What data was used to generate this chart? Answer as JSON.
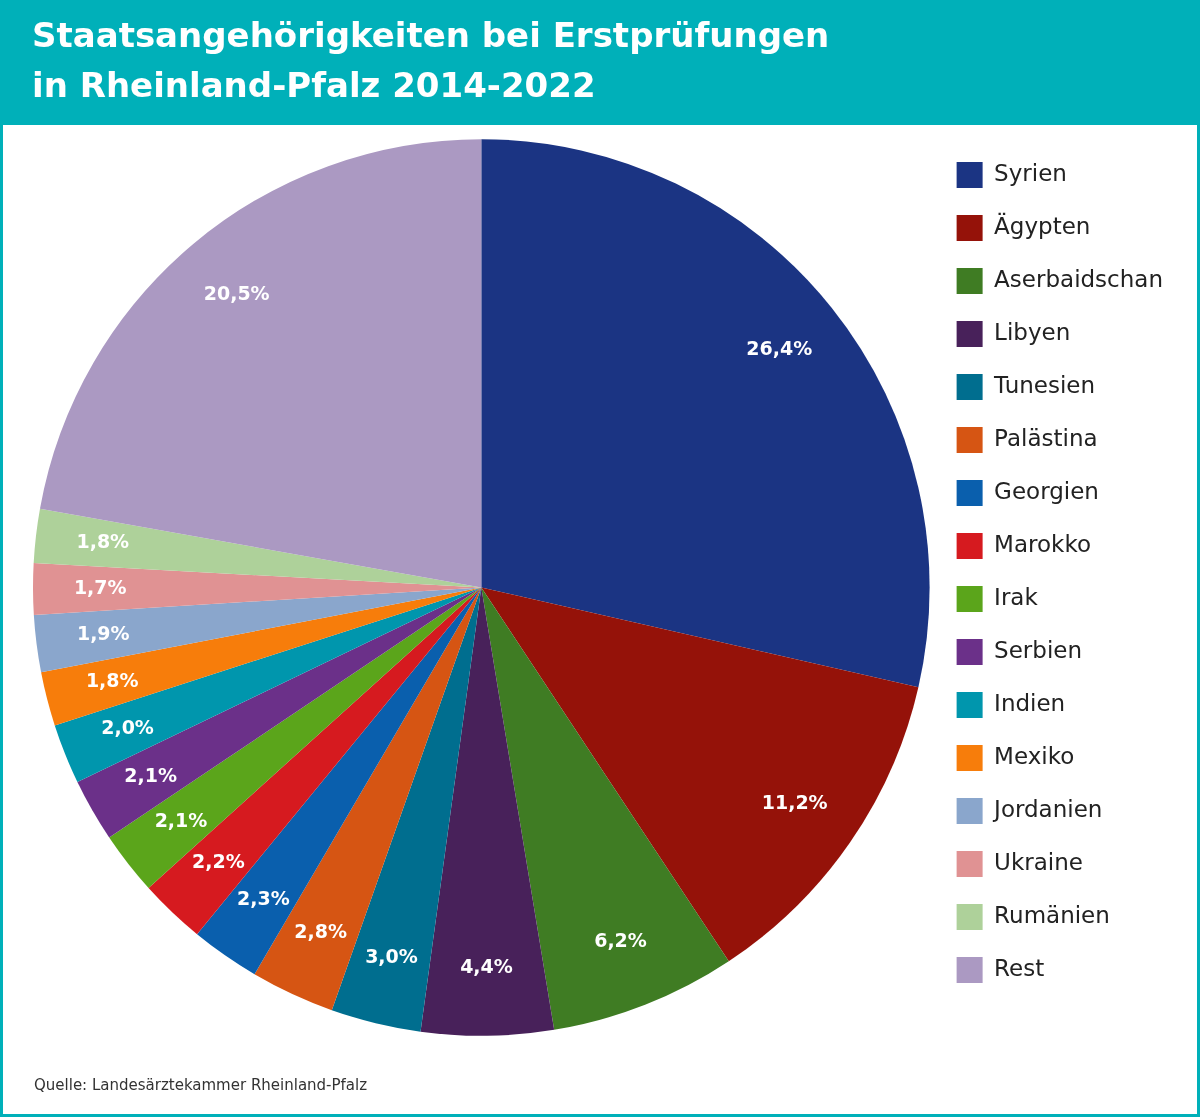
{
  "chart_data": {
    "type": "pie",
    "title": "Staatsangehörigkeiten bei Erstprüfungen in Rheinland-Pfalz 2014-2022",
    "categories": [
      "Syrien",
      "Ägypten",
      "Aserbaidschan",
      "Libyen",
      "Tunesien",
      "Palästina",
      "Georgien",
      "Marokko",
      "Irak",
      "Serbien",
      "Indien",
      "Mexiko",
      "Jordanien",
      "Ukraine",
      "Rumänien",
      "Rest"
    ],
    "values": [
      26.4,
      11.2,
      6.2,
      4.4,
      3.0,
      2.8,
      2.3,
      2.2,
      2.1,
      2.1,
      2.0,
      1.8,
      1.9,
      1.7,
      1.8,
      20.5
    ],
    "value_labels": [
      "26,4%",
      "11,2%",
      "6,2%",
      "4,4%",
      "3,0%",
      "2,8%",
      "2,3%",
      "2,2%",
      "2,1%",
      "2,1%",
      "2,0%",
      "1,8%",
      "1,9%",
      "1,7%",
      "1,8%",
      "20,5%"
    ],
    "colors": [
      "#1b3483",
      "#951209",
      "#3f7c23",
      "#48215a",
      "#006e8f",
      "#d65513",
      "#0a5fad",
      "#d61a1f",
      "#5ba51b",
      "#6b3089",
      "#0096ad",
      "#f77d0b",
      "#8aa6cc",
      "#e09293",
      "#aed19a",
      "#ab99c2"
    ],
    "legend": "right",
    "annotations": [
      "Quelle: Landesärztekammer Rheinland-Pfalz"
    ]
  }
}
